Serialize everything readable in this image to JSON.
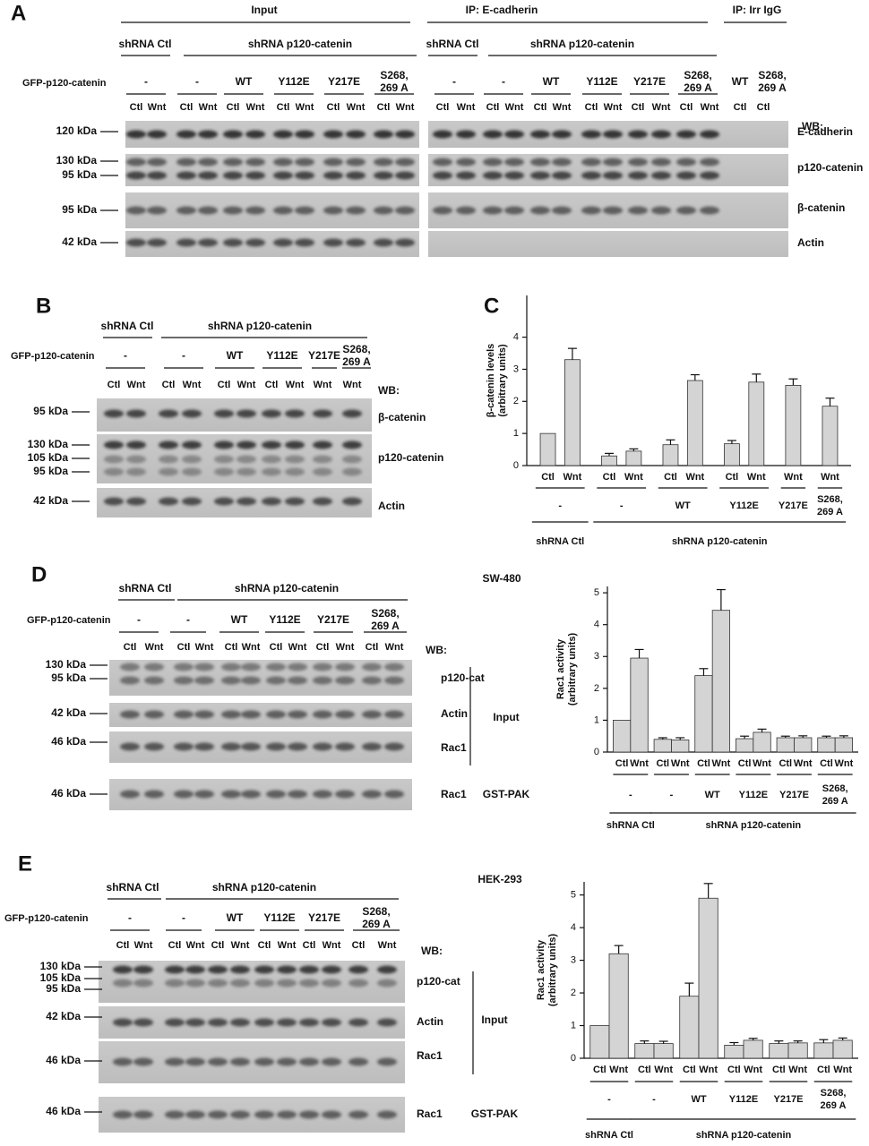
{
  "panels": {
    "A": {
      "label": "A",
      "headers": [
        "Input",
        "IP: E-cadherin",
        "IP: Irr IgG"
      ],
      "shrna": [
        "shRNA Ctl",
        "shRNA p120-catenin",
        "shRNA Ctl",
        "shRNA p120-catenin"
      ],
      "construct_title": "GFP-p120-catenin",
      "constructs": [
        "-",
        "-",
        "WT",
        "Y112E",
        "Y217E",
        "S268, 269 A",
        "-",
        "-",
        "WT",
        "Y112E",
        "Y217E",
        "S268, 269 A",
        "WT",
        "S268, 269 A"
      ],
      "lanes": [
        "Ctl",
        "Wnt",
        "Ctl",
        "Wnt",
        "Ctl",
        "Wnt",
        "Ctl",
        "Wnt",
        "Ctl",
        "Wnt",
        "Ctl",
        "Wnt",
        "Ctl",
        "Wnt",
        "Ctl",
        "Wnt",
        "Ctl",
        "Wnt",
        "Ctl",
        "Wnt",
        "Ctl",
        "Wnt",
        "Ctl",
        "Wnt",
        "Ctl",
        "Ctl"
      ],
      "wb": "WB:",
      "markers": [
        "120 kDa",
        "130 kDa",
        "95 kDa",
        "95 kDa",
        "42 kDa"
      ],
      "proteins": [
        "E-cadherin",
        "p120-catenin",
        "β-catenin",
        "Actin"
      ]
    },
    "B": {
      "label": "B",
      "shrna": [
        "shRNA Ctl",
        "shRNA p120-catenin"
      ],
      "construct_title": "GFP-p120-catenin",
      "constructs": [
        "-",
        "-",
        "WT",
        "Y112E",
        "Y217E",
        "S268, 269 A"
      ],
      "lanes": [
        "Ctl",
        "Wnt",
        "Ctl",
        "Wnt",
        "Ctl",
        "Wnt",
        "Ctl",
        "Wnt",
        "Wnt",
        "Wnt"
      ],
      "wb": "WB:",
      "markers": [
        "95 kDa",
        "130 kDa",
        "105 kDa",
        "95 kDa",
        "42 kDa"
      ],
      "proteins": [
        "β-catenin",
        "p120-catenin",
        "Actin"
      ]
    },
    "D": {
      "label": "D",
      "cell_line": "SW-480",
      "shrna": [
        "shRNA Ctl",
        "shRNA p120-catenin"
      ],
      "construct_title": "GFP-p120-catenin",
      "constructs": [
        "-",
        "-",
        "WT",
        "Y112E",
        "Y217E",
        "S268, 269 A"
      ],
      "lanes": [
        "Ctl",
        "Wnt",
        "Ctl",
        "Wnt",
        "Ctl",
        "Wnt",
        "Ctl",
        "Wnt",
        "Ctl",
        "Wnt",
        "Ctl",
        "Wnt"
      ],
      "wb": "WB:",
      "markers": [
        "130 kDa",
        "95 kDa",
        "42 kDa",
        "46 kDa",
        "46 kDa"
      ],
      "proteins": [
        "p120-cat",
        "Actin",
        "Rac1",
        "Rac1"
      ],
      "side_labels": [
        "Input",
        "GST-PAK"
      ]
    },
    "E": {
      "label": "E",
      "cell_line": "HEK-293",
      "shrna": [
        "shRNA Ctl",
        "shRNA p120-catenin"
      ],
      "construct_title": "GFP-p120-catenin",
      "constructs": [
        "-",
        "-",
        "WT",
        "Y112E",
        "Y217E",
        "S268, 269 A"
      ],
      "lanes": [
        "Ctl",
        "Wnt",
        "Ctl",
        "Wnt",
        "Ctl",
        "Wnt",
        "Ctl",
        "Wnt",
        "Ctl",
        "Wnt",
        "Ctl",
        "Wnt"
      ],
      "wb": "WB:",
      "markers": [
        "130 kDa",
        "105 kDa",
        "95 kDa",
        "42 kDa",
        "46 kDa",
        "46 kDa"
      ],
      "proteins": [
        "p120-cat",
        "Actin",
        "Rac1",
        "Rac1"
      ],
      "side_labels": [
        "Input",
        "GST-PAK"
      ]
    }
  },
  "chart_data": [
    {
      "type": "bar",
      "panel_label": "C",
      "y_label": [
        "β-catenin levels",
        "(arbitrary units)"
      ],
      "color": "#d4d4d4",
      "ylim": [
        0,
        5.3
      ],
      "yticks": [
        0,
        1,
        2,
        3,
        4
      ],
      "sections": [
        {
          "label": "shRNA Ctl",
          "groups": [
            {
              "label": "-",
              "categories": [
                "Ctl",
                "Wnt"
              ],
              "values": [
                1.0,
                3.3
              ],
              "errors": [
                null,
                0.35
              ]
            }
          ]
        },
        {
          "label": "shRNA p120-catenin",
          "groups": [
            {
              "label": "-",
              "categories": [
                "Ctl",
                "Wnt"
              ],
              "values": [
                0.3,
                0.45
              ],
              "errors": [
                0.08,
                0.07
              ]
            },
            {
              "label": "WT",
              "categories": [
                "Ctl",
                "Wnt"
              ],
              "values": [
                0.65,
                2.65
              ],
              "errors": [
                0.15,
                0.18
              ]
            },
            {
              "label": "Y112E",
              "categories": [
                "Ctl",
                "Wnt"
              ],
              "values": [
                0.68,
                2.6
              ],
              "errors": [
                0.1,
                0.25
              ]
            },
            {
              "label": "Y217E",
              "categories": [
                "Wnt"
              ],
              "values": [
                2.5
              ],
              "errors": [
                0.2
              ]
            },
            {
              "label": "S268, 269 A",
              "categories": [
                "Wnt"
              ],
              "values": [
                1.85
              ],
              "errors": [
                0.25
              ]
            }
          ]
        }
      ]
    },
    {
      "type": "bar",
      "y_label": [
        "Rac1 activity",
        "(arbitrary units)"
      ],
      "color": "#d4d4d4",
      "ylim": [
        0,
        5.2
      ],
      "yticks": [
        0,
        1,
        2,
        3,
        4,
        5
      ],
      "sections": [
        {
          "label": "shRNA Ctl",
          "groups": [
            {
              "label": "-",
              "categories": [
                "Ctl",
                "Wnt"
              ],
              "values": [
                1.0,
                2.95
              ],
              "errors": [
                null,
                0.27
              ]
            }
          ]
        },
        {
          "label": "shRNA p120-catenin",
          "groups": [
            {
              "label": "-",
              "categories": [
                "Ctl",
                "Wnt"
              ],
              "values": [
                0.4,
                0.38
              ],
              "errors": [
                0.05,
                0.07
              ]
            },
            {
              "label": "WT",
              "categories": [
                "Ctl",
                "Wnt"
              ],
              "values": [
                2.4,
                4.45
              ],
              "errors": [
                0.22,
                0.65
              ]
            },
            {
              "label": "Y112E",
              "categories": [
                "Ctl",
                "Wnt"
              ],
              "values": [
                0.42,
                0.62
              ],
              "errors": [
                0.08,
                0.1
              ]
            },
            {
              "label": "Y217E",
              "categories": [
                "Ctl",
                "Wnt"
              ],
              "values": [
                0.45,
                0.45
              ],
              "errors": [
                0.05,
                0.06
              ]
            },
            {
              "label": "S268, 269 A",
              "categories": [
                "Ctl",
                "Wnt"
              ],
              "values": [
                0.45,
                0.45
              ],
              "errors": [
                0.05,
                0.06
              ]
            }
          ]
        }
      ]
    },
    {
      "type": "bar",
      "y_label": [
        "Rac1 activity",
        "(arbitrary units)"
      ],
      "color": "#d4d4d4",
      "ylim": [
        0,
        5.4
      ],
      "yticks": [
        0,
        1,
        2,
        3,
        4,
        5
      ],
      "sections": [
        {
          "label": "shRNA Ctl",
          "groups": [
            {
              "label": "-",
              "categories": [
                "Ctl",
                "Wnt"
              ],
              "values": [
                1.0,
                3.2
              ],
              "errors": [
                null,
                0.25
              ]
            }
          ]
        },
        {
          "label": "shRNA p120-catenin",
          "groups": [
            {
              "label": "-",
              "categories": [
                "Ctl",
                "Wnt"
              ],
              "values": [
                0.45,
                0.45
              ],
              "errors": [
                0.08,
                0.07
              ]
            },
            {
              "label": "WT",
              "categories": [
                "Ctl",
                "Wnt"
              ],
              "values": [
                1.9,
                4.9
              ],
              "errors": [
                0.4,
                0.45
              ]
            },
            {
              "label": "Y112E",
              "categories": [
                "Ctl",
                "Wnt"
              ],
              "values": [
                0.4,
                0.55
              ],
              "errors": [
                0.08,
                0.06
              ]
            },
            {
              "label": "Y217E",
              "categories": [
                "Ctl",
                "Wnt"
              ],
              "values": [
                0.45,
                0.47
              ],
              "errors": [
                0.08,
                0.06
              ]
            },
            {
              "label": "S268, 269 A",
              "categories": [
                "Ctl",
                "Wnt"
              ],
              "values": [
                0.47,
                0.55
              ],
              "errors": [
                0.1,
                0.07
              ]
            }
          ]
        }
      ]
    }
  ]
}
